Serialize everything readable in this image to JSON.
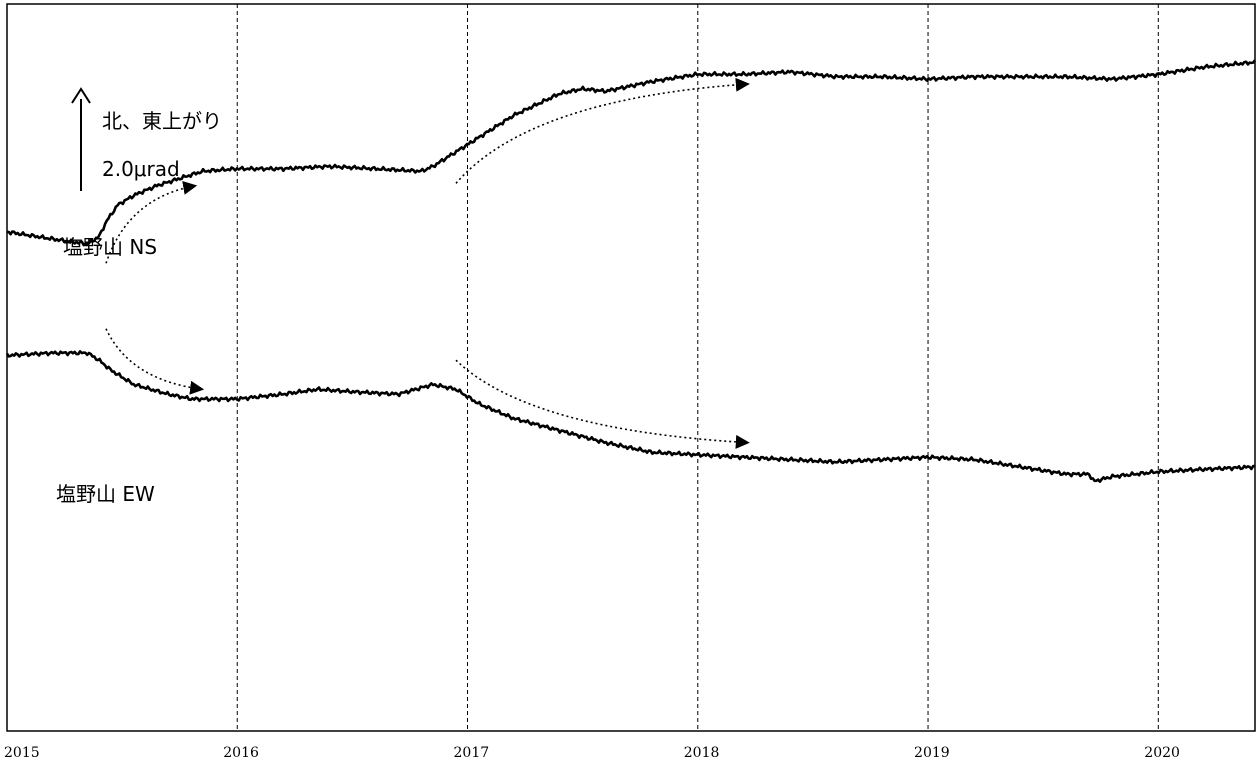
{
  "chart_data": {
    "type": "line",
    "title": "",
    "xlabel": "",
    "ylabel": "",
    "x_ticks": [
      "2015",
      "2016",
      "2017",
      "2018",
      "2019",
      "2020"
    ],
    "x_tick_values": [
      2015.0,
      2016.0,
      2017.0,
      2018.0,
      2019.0,
      2020.0
    ],
    "xlim": [
      2015.0,
      2020.42
    ],
    "ylim": [
      0,
      30
    ],
    "grid": {
      "x": "dashed",
      "y": "off"
    },
    "scale_bar": {
      "label_direction": "北、東上がり",
      "label_value": "2.0μrad",
      "value": 2.0
    },
    "series": [
      {
        "name": "塩野山 NS",
        "x": [
          2015.0,
          2015.2,
          2015.35,
          2015.4,
          2015.43,
          2015.48,
          2015.55,
          2015.65,
          2015.75,
          2015.85,
          2016.0,
          2016.2,
          2016.4,
          2016.6,
          2016.8,
          2016.85,
          2016.9,
          2017.0,
          2017.2,
          2017.4,
          2017.5,
          2017.6,
          2017.8,
          2018.0,
          2018.2,
          2018.4,
          2018.6,
          2018.8,
          2019.0,
          2019.2,
          2019.4,
          2019.6,
          2019.8,
          2020.0,
          2020.2,
          2020.42
        ],
        "y": [
          20.6,
          20.3,
          20.1,
          20.4,
          21.0,
          21.7,
          22.1,
          22.5,
          22.8,
          23.1,
          23.2,
          23.2,
          23.3,
          23.2,
          23.1,
          23.3,
          23.6,
          24.2,
          25.4,
          26.3,
          26.5,
          26.4,
          26.8,
          27.1,
          27.1,
          27.2,
          27.0,
          27.0,
          26.9,
          27.0,
          27.0,
          27.0,
          26.9,
          27.1,
          27.4,
          27.6
        ]
      },
      {
        "name": "塩野山 EW",
        "x": [
          2015.0,
          2015.2,
          2015.35,
          2015.4,
          2015.45,
          2015.55,
          2015.7,
          2015.8,
          2016.0,
          2016.2,
          2016.35,
          2016.5,
          2016.7,
          2016.85,
          2016.95,
          2017.05,
          2017.2,
          2017.4,
          2017.6,
          2017.8,
          2018.0,
          2018.2,
          2018.4,
          2018.6,
          2018.8,
          2019.0,
          2019.2,
          2019.4,
          2019.6,
          2019.7,
          2019.72,
          2019.8,
          2020.0,
          2020.2,
          2020.42
        ],
        "y": [
          15.5,
          15.6,
          15.6,
          15.3,
          14.9,
          14.3,
          13.9,
          13.7,
          13.7,
          13.9,
          14.1,
          14.0,
          13.9,
          14.3,
          14.1,
          13.5,
          12.9,
          12.4,
          11.9,
          11.5,
          11.4,
          11.3,
          11.2,
          11.1,
          11.2,
          11.3,
          11.2,
          10.9,
          10.6,
          10.6,
          10.3,
          10.5,
          10.7,
          10.8,
          10.9
        ]
      }
    ],
    "annotations": [
      {
        "type": "dotted-arrow",
        "series": "塩野山 NS",
        "from": [
          2015.43,
          19.3
        ],
        "to": [
          2015.82,
          22.5
        ]
      },
      {
        "type": "dotted-arrow",
        "series": "塩野山 NS",
        "from": [
          2016.95,
          22.6
        ],
        "to": [
          2018.22,
          26.7
        ]
      },
      {
        "type": "dotted-arrow",
        "series": "塩野山 EW",
        "from": [
          2015.43,
          16.6
        ],
        "to": [
          2015.85,
          14.1
        ]
      },
      {
        "type": "dotted-arrow",
        "series": "塩野山 EW",
        "from": [
          2016.95,
          15.3
        ],
        "to": [
          2018.22,
          11.9
        ]
      }
    ]
  }
}
